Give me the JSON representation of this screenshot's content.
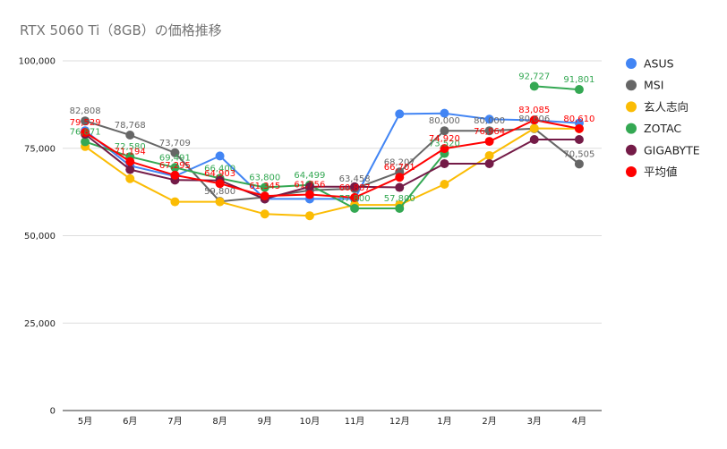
{
  "chart_data": {
    "type": "line",
    "title": "RTX 5060 Ti（8GB）の価格推移",
    "xlabel": "",
    "ylabel": "",
    "ylim": [
      0,
      100000
    ],
    "yticks": [
      0,
      25000,
      50000,
      75000,
      100000
    ],
    "ytick_labels": [
      "0",
      "25,000",
      "50,000",
      "75,000",
      "100,000"
    ],
    "grid": true,
    "legend_position": "right",
    "categories": [
      "5月",
      "6月",
      "7月",
      "8月",
      "9月",
      "10月",
      "11月",
      "12月",
      "1月",
      "2月",
      "3月",
      "4月"
    ],
    "series": [
      {
        "name": "ASUS",
        "color": "#4285f4",
        "values": [
          80000,
          70000,
          67000,
          72800,
          60500,
          60500,
          60500,
          84800,
          85000,
          83300,
          83000,
          82200
        ],
        "labels": [
          null,
          null,
          null,
          null,
          null,
          null,
          null,
          null,
          null,
          null,
          null,
          null
        ]
      },
      {
        "name": "MSI",
        "color": "#666666",
        "values": [
          82808,
          78768,
          73709,
          59800,
          61000,
          63000,
          63458,
          68207,
          80000,
          80000,
          80606,
          70505
        ],
        "labels": [
          "82,808",
          "78,768",
          "73,709",
          "59,800",
          null,
          null,
          "63,458",
          "68,207",
          "80,000",
          "80,000",
          "80,606",
          "70,505"
        ]
      },
      {
        "name": "玄人志向",
        "color": "#fbbc04",
        "values": [
          75500,
          66300,
          59700,
          59700,
          56200,
          55700,
          58800,
          58800,
          64700,
          72900,
          80700,
          80600
        ],
        "labels": [
          null,
          null,
          null,
          null,
          null,
          null,
          null,
          null,
          null,
          null,
          null,
          null
        ]
      },
      {
        "name": "ZOTAC",
        "color": "#34a853",
        "values": [
          76871,
          72580,
          69491,
          66400,
          63800,
          64499,
          57800,
          57800,
          73520,
          null,
          92727,
          91801
        ],
        "labels": [
          "76,871",
          "72,580",
          "69,491",
          "66,400",
          "63,800",
          "64,499",
          "57,800",
          "57,800",
          "73,520",
          null,
          "92,727",
          "91,801"
        ]
      },
      {
        "name": "GIGABYTE",
        "color": "#741b47",
        "values": [
          79000,
          68900,
          65900,
          65800,
          60500,
          64000,
          64000,
          63800,
          70600,
          70600,
          77500,
          77500
        ],
        "labels": [
          null,
          null,
          null,
          null,
          null,
          null,
          null,
          null,
          null,
          null,
          null,
          null
        ]
      },
      {
        "name": "平均値",
        "color": "#ff0000",
        "values": [
          79529,
          71194,
          67295,
          64903,
          61345,
          61756,
          60887,
          66701,
          74920,
          76964,
          83085,
          80610
        ],
        "labels": [
          "79,529",
          "71,194",
          "67,295",
          "64,903",
          "61,345",
          "61,756",
          "60,887",
          "66,701",
          "74,920",
          "76,964",
          "83,085",
          "80,610"
        ]
      }
    ]
  }
}
